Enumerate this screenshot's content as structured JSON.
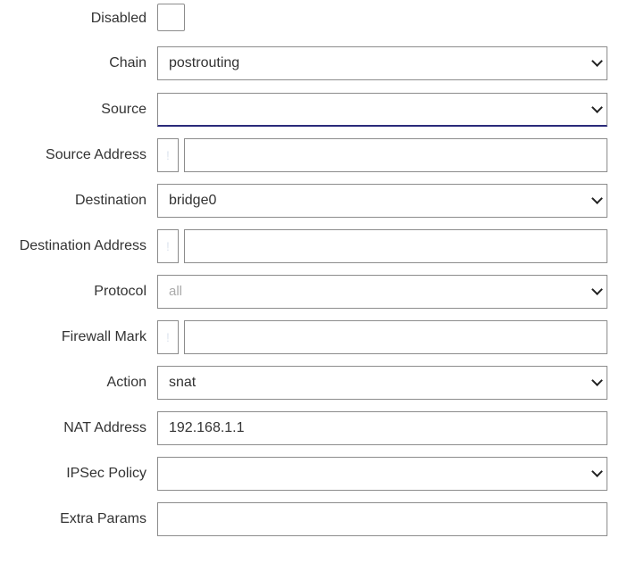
{
  "form": {
    "disabled": {
      "label": "Disabled",
      "checked": false
    },
    "chain": {
      "label": "Chain",
      "value": "postrouting"
    },
    "source": {
      "label": "Source",
      "value": ""
    },
    "source_address": {
      "label": "Source Address",
      "negate": "!",
      "value": ""
    },
    "destination": {
      "label": "Destination",
      "value": "bridge0"
    },
    "destination_address": {
      "label": "Destination Address",
      "negate": "!",
      "value": ""
    },
    "protocol": {
      "label": "Protocol",
      "placeholder": "all"
    },
    "firewall_mark": {
      "label": "Firewall Mark",
      "negate": "!",
      "value": ""
    },
    "action": {
      "label": "Action",
      "value": "snat"
    },
    "nat_address": {
      "label": "NAT Address",
      "value": "192.168.1.1"
    },
    "ipsec_policy": {
      "label": "IPSec Policy",
      "value": ""
    },
    "extra_params": {
      "label": "Extra Params",
      "value": ""
    }
  }
}
